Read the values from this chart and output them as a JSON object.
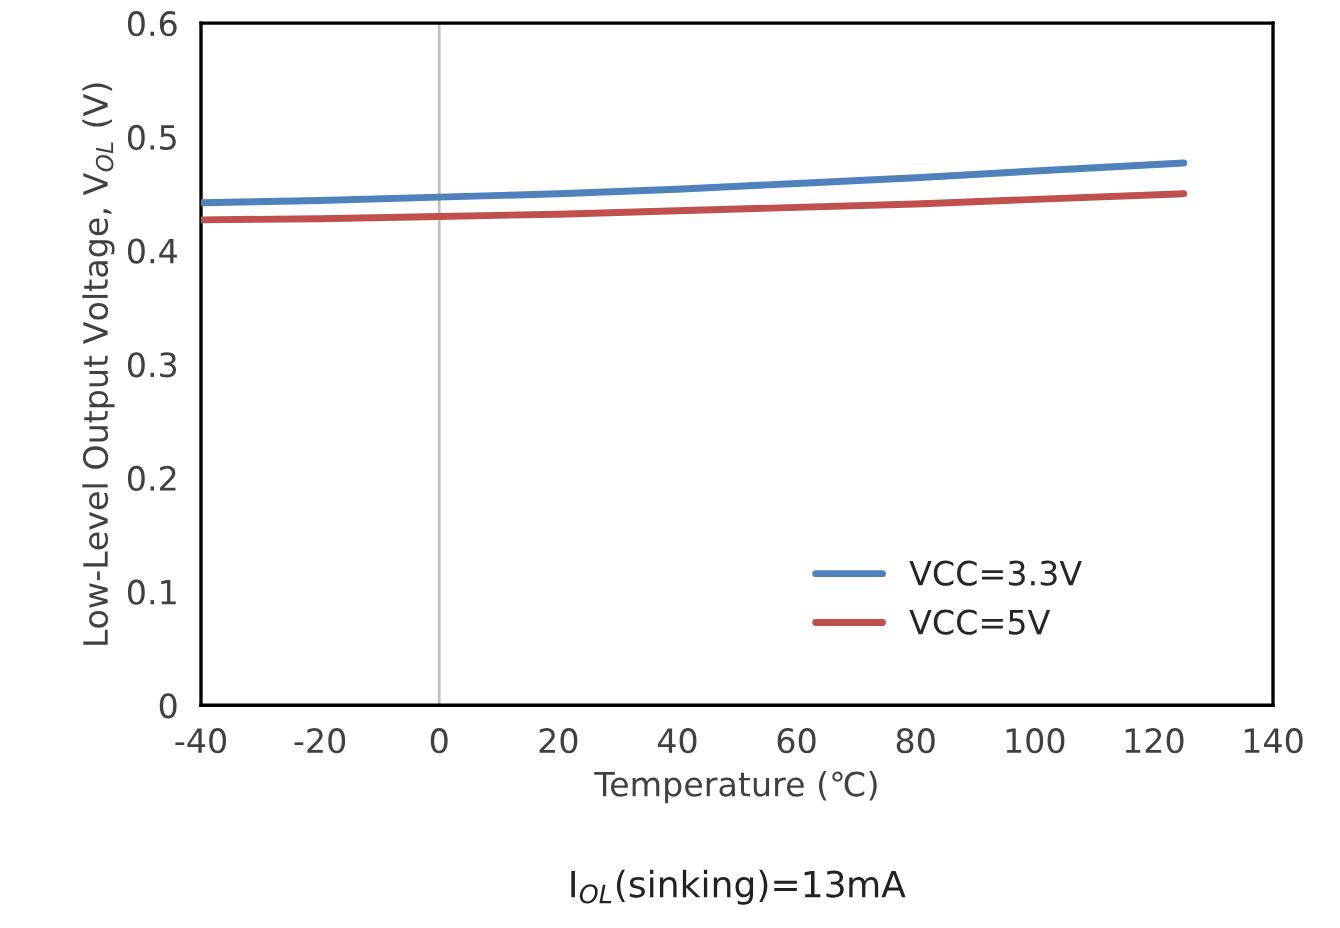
{
  "chart_data": {
    "type": "line",
    "xlabel": "Temperature (℃)",
    "ylabel": "Low-Level Output Voltage, V$_{OL}$ (V)",
    "x": [
      -40,
      -20,
      0,
      20,
      40,
      60,
      80,
      100,
      125
    ],
    "series": [
      {
        "name": "VCC=3.3V",
        "color": "#4f81bd",
        "values": [
          0.442,
          0.444,
          0.447,
          0.45,
          0.454,
          0.459,
          0.464,
          0.47,
          0.477
        ]
      },
      {
        "name": "VCC=5V",
        "color": "#c0504d",
        "values": [
          0.427,
          0.428,
          0.43,
          0.432,
          0.435,
          0.438,
          0.441,
          0.445,
          0.45
        ]
      }
    ],
    "xlim": [
      -40,
      140
    ],
    "xticks": [
      -40,
      -20,
      0,
      20,
      40,
      60,
      80,
      100,
      120,
      140
    ],
    "ylim": [
      0,
      0.6
    ],
    "yticks": [
      0,
      0.1,
      0.2,
      0.3,
      0.4,
      0.5,
      0.6
    ],
    "ref_lines": [
      {
        "axis": "x",
        "value": 0,
        "color": "#bfbfbf"
      }
    ],
    "grid": false,
    "legend": "bottom right",
    "marker": "none",
    "line_style": "solid",
    "annotations": [
      "I$_{OL}$(sinking)=13mA"
    ]
  }
}
